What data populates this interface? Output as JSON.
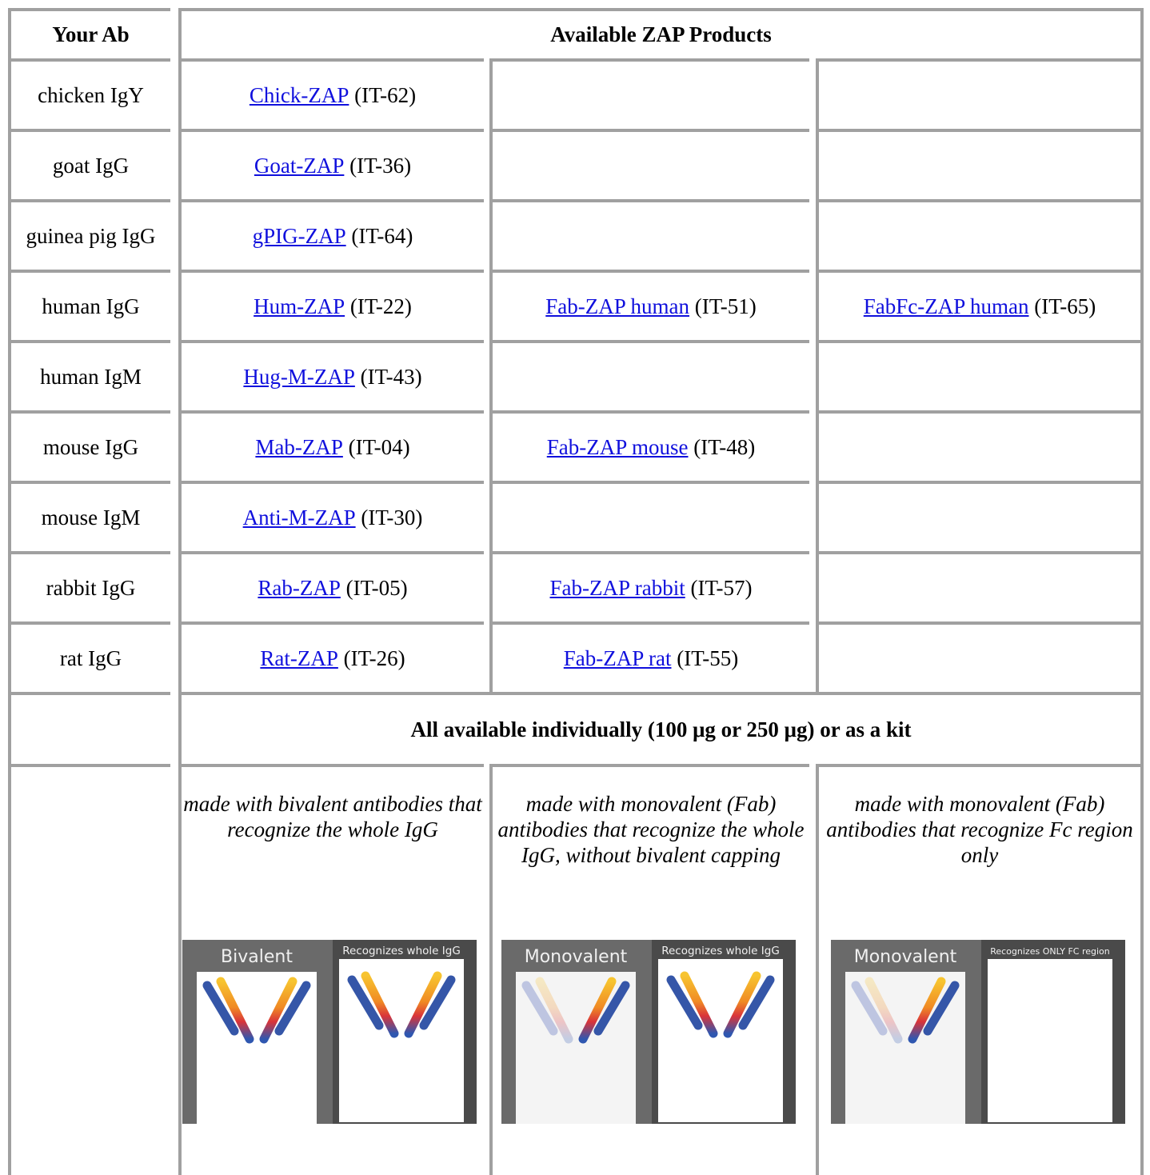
{
  "table": {
    "header": [
      "Your Ab",
      "Available ZAP Products"
    ],
    "rows": [
      {
        "ab": "chicken IgY",
        "products": [
          {
            "link": "Chick-ZAP",
            "code": "(IT-62)"
          }
        ]
      },
      {
        "ab": "goat IgG",
        "products": [
          {
            "link": "Goat-ZAP",
            "code": "(IT-36)"
          }
        ]
      },
      {
        "ab": "guinea pig IgG",
        "products": [
          {
            "link": "gPIG-ZAP",
            "code": "(IT-64)"
          }
        ]
      },
      {
        "ab": "human IgG",
        "products": [
          {
            "link": "Hum-ZAP",
            "code": "(IT-22)"
          },
          {
            "link": "Fab-ZAP human",
            "code": "(IT-51)"
          },
          {
            "link": "FabFc-ZAP human",
            "code": "(IT-65)"
          }
        ]
      },
      {
        "ab": "human IgM",
        "products": [
          {
            "link": "Hug-M-ZAP",
            "code": "(IT-43)"
          }
        ]
      },
      {
        "ab": "mouse IgG",
        "products": [
          {
            "link": "Mab-ZAP",
            "code": "(IT-04)"
          },
          {
            "link": "Fab-ZAP mouse",
            "code": "(IT-48)"
          }
        ]
      },
      {
        "ab": "mouse IgM",
        "products": [
          {
            "link": "Anti-M-ZAP",
            "code": "(IT-30)"
          }
        ]
      },
      {
        "ab": "rabbit IgG",
        "products": [
          {
            "link": "Rab-ZAP",
            "code": "(IT-05)"
          },
          {
            "link": "Fab-ZAP rabbit",
            "code": "(IT-57)"
          }
        ]
      },
      {
        "ab": "rat IgG",
        "products": [
          {
            "link": "Rat-ZAP",
            "code": "(IT-26)"
          },
          {
            "link": "Fab-ZAP rat",
            "code": "(IT-55)"
          }
        ]
      }
    ],
    "note": "All available individually (100 μg or 250 μg) or as a kit",
    "descriptions": [
      "made with bivalent antibodies that recognize the whole IgG",
      "made with monovalent (Fab) antibodies that recognize the whole IgG, without bivalent capping",
      "made with monovalent (Fab) antibodies that recognize Fc region only"
    ],
    "images": [
      {
        "left": "Bivalent",
        "right": "Recognizes whole IgG"
      },
      {
        "left": "Monovalent",
        "right": "Recognizes whole IgG"
      },
      {
        "left": "Monovalent",
        "right": "Recognizes ONLY FC region"
      }
    ]
  }
}
